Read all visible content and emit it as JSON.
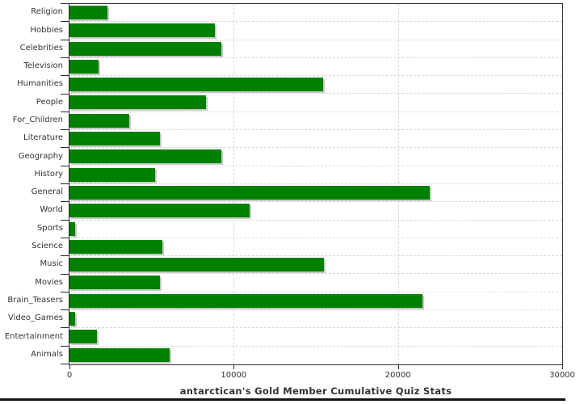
{
  "chart_data": {
    "type": "bar",
    "orientation": "horizontal",
    "title": "antarctican's Gold Member Cumulative Quiz Stats",
    "categories": [
      "Religion",
      "Hobbies",
      "Celebrities",
      "Television",
      "Humanities",
      "People",
      "For_Children",
      "Literature",
      "Geography",
      "History",
      "General",
      "World",
      "Sports",
      "Science",
      "Music",
      "Movies",
      "Brain_Teasers",
      "Video_Games",
      "Entertainment",
      "Animals"
    ],
    "values": [
      2330,
      8850,
      9260,
      1790,
      15460,
      8300,
      3640,
      5490,
      9230,
      5200,
      21920,
      10950,
      345,
      5650,
      15490,
      5490,
      21470,
      345,
      1690,
      6100
    ],
    "xlabel": "",
    "ylabel": "",
    "xlim": [
      0,
      30000
    ],
    "x_ticks": [
      0,
      10000,
      20000,
      30000
    ],
    "x_tick_labels": [
      "0",
      "10000",
      "20000",
      "30000"
    ],
    "grid": "dashed horizontal and vertical",
    "legend": "none",
    "bar_color": "#008000",
    "bar_shadow_color": "#c9c9c9",
    "grid_color": "#d9d9d9",
    "axis_color": "#2b2b2b",
    "text_color": "#333333"
  }
}
